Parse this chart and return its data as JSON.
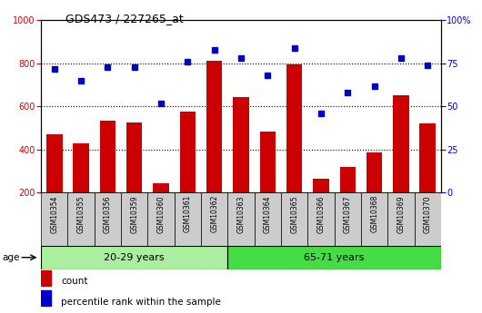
{
  "title": "GDS473 / 227265_at",
  "categories": [
    "GSM10354",
    "GSM10355",
    "GSM10356",
    "GSM10359",
    "GSM10360",
    "GSM10361",
    "GSM10362",
    "GSM10363",
    "GSM10364",
    "GSM10365",
    "GSM10366",
    "GSM10367",
    "GSM10368",
    "GSM10369",
    "GSM10370"
  ],
  "counts": [
    470,
    430,
    535,
    525,
    245,
    575,
    810,
    645,
    485,
    795,
    265,
    320,
    385,
    650,
    520
  ],
  "percentiles": [
    72,
    65,
    73,
    73,
    52,
    76,
    83,
    78,
    68,
    84,
    46,
    58,
    62,
    78,
    74
  ],
  "group1_label": "20-29 years",
  "group2_label": "65-71 years",
  "group1_count": 7,
  "group2_count": 8,
  "ylim_left": [
    200,
    1000
  ],
  "ylim_right": [
    0,
    100
  ],
  "yticks_left": [
    200,
    400,
    600,
    800,
    1000
  ],
  "yticks_right": [
    0,
    25,
    50,
    75,
    100
  ],
  "bar_color": "#cc0000",
  "dot_color": "#0000cc",
  "group1_bg": "#aaeea0",
  "group2_bg": "#44dd44",
  "tick_bg": "#cccccc",
  "legend_square_red": "#cc0000",
  "legend_square_blue": "#0000cc",
  "grid_color": "#000000",
  "age_label": "age"
}
